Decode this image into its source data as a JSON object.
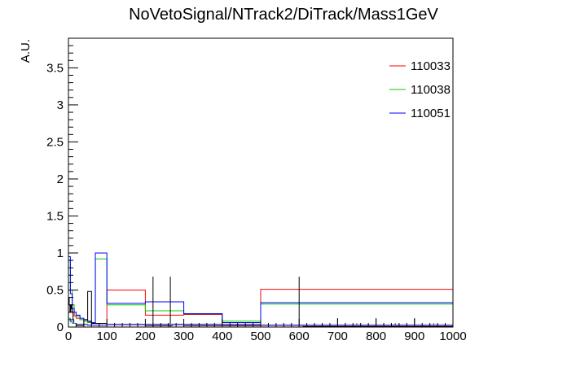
{
  "chart_data": {
    "type": "line",
    "title": "NoVetoSignal/NTrack2/DiTrack/Mass1GeV",
    "xlabel": "",
    "ylabel": "A.U.",
    "xlim": [
      0,
      1000
    ],
    "ylim": [
      0,
      3.9
    ],
    "x_ticks": [
      "0",
      "100",
      "200",
      "300",
      "400",
      "500",
      "600",
      "700",
      "800",
      "900",
      "1000"
    ],
    "y_ticks": [
      "0",
      "0.5",
      "1",
      "1.5",
      "2",
      "2.5",
      "3",
      "3.5"
    ],
    "legend_position": "top-right",
    "series": [
      {
        "name": "110033",
        "color": "#ff0000",
        "edges": [
          0,
          5,
          10,
          15,
          20,
          30,
          40,
          50,
          60,
          70,
          100,
          200,
          300,
          400,
          500,
          1000
        ],
        "values": [
          0.2,
          0.25,
          0.2,
          0.15,
          0.12,
          0.1,
          0.08,
          0.07,
          0.06,
          0.05,
          0.5,
          0.16,
          0.17,
          0.02,
          0.51
        ]
      },
      {
        "name": "110038",
        "color": "#00cc00",
        "edges": [
          0,
          5,
          10,
          15,
          20,
          30,
          40,
          50,
          60,
          70,
          100,
          200,
          300,
          400,
          500,
          1000
        ],
        "values": [
          0.9,
          0.5,
          0.3,
          0.2,
          0.15,
          0.1,
          0.08,
          0.06,
          0.05,
          0.92,
          0.3,
          0.22,
          0.18,
          0.08,
          0.31
        ]
      },
      {
        "name": "110051",
        "color": "#0000ff",
        "edges": [
          0,
          5,
          10,
          15,
          20,
          30,
          40,
          50,
          60,
          70,
          100,
          200,
          300,
          400,
          500,
          1000
        ],
        "values": [
          0.95,
          0.45,
          0.25,
          0.2,
          0.16,
          0.12,
          0.1,
          0.08,
          0.06,
          1.0,
          0.32,
          0.34,
          0.18,
          0.06,
          0.33
        ]
      },
      {
        "name": "",
        "color": "#000000",
        "edges": [
          0,
          2,
          4,
          6,
          8,
          10,
          12,
          14,
          20,
          40,
          50,
          60,
          100,
          200,
          220,
          270,
          300,
          500,
          600,
          610,
          1000
        ],
        "values": [
          0.4,
          0.3,
          0.2,
          0.3,
          0.25,
          0.2,
          0.1,
          0.05,
          0.02,
          0.1,
          0.48,
          0.05,
          0.03,
          0.02,
          0.02,
          0.03,
          0.02,
          0.02,
          0.02,
          0.01
        ],
        "error_x": [
          220,
          265,
          600,
          700,
          750,
          800,
          850,
          900,
          950
        ],
        "error_hi": [
          0.68,
          0.68,
          0.68,
          0.12,
          0.05,
          0.12,
          0.05,
          0.12,
          0.05
        ]
      },
      {
        "name": "",
        "color": "#ff00ff",
        "edges": [
          0,
          5,
          10,
          20,
          50,
          100,
          500,
          1000
        ],
        "values": [
          0.1,
          0.08,
          0.05,
          0.03,
          0.02,
          0.03,
          0.02
        ]
      },
      {
        "name": "",
        "color": "#00aaaa",
        "edges": [
          0,
          5,
          10,
          20,
          50,
          100,
          500,
          1000
        ],
        "values": [
          0.12,
          0.07,
          0.05,
          0.04,
          0.03,
          0.04,
          0.03
        ]
      }
    ]
  }
}
